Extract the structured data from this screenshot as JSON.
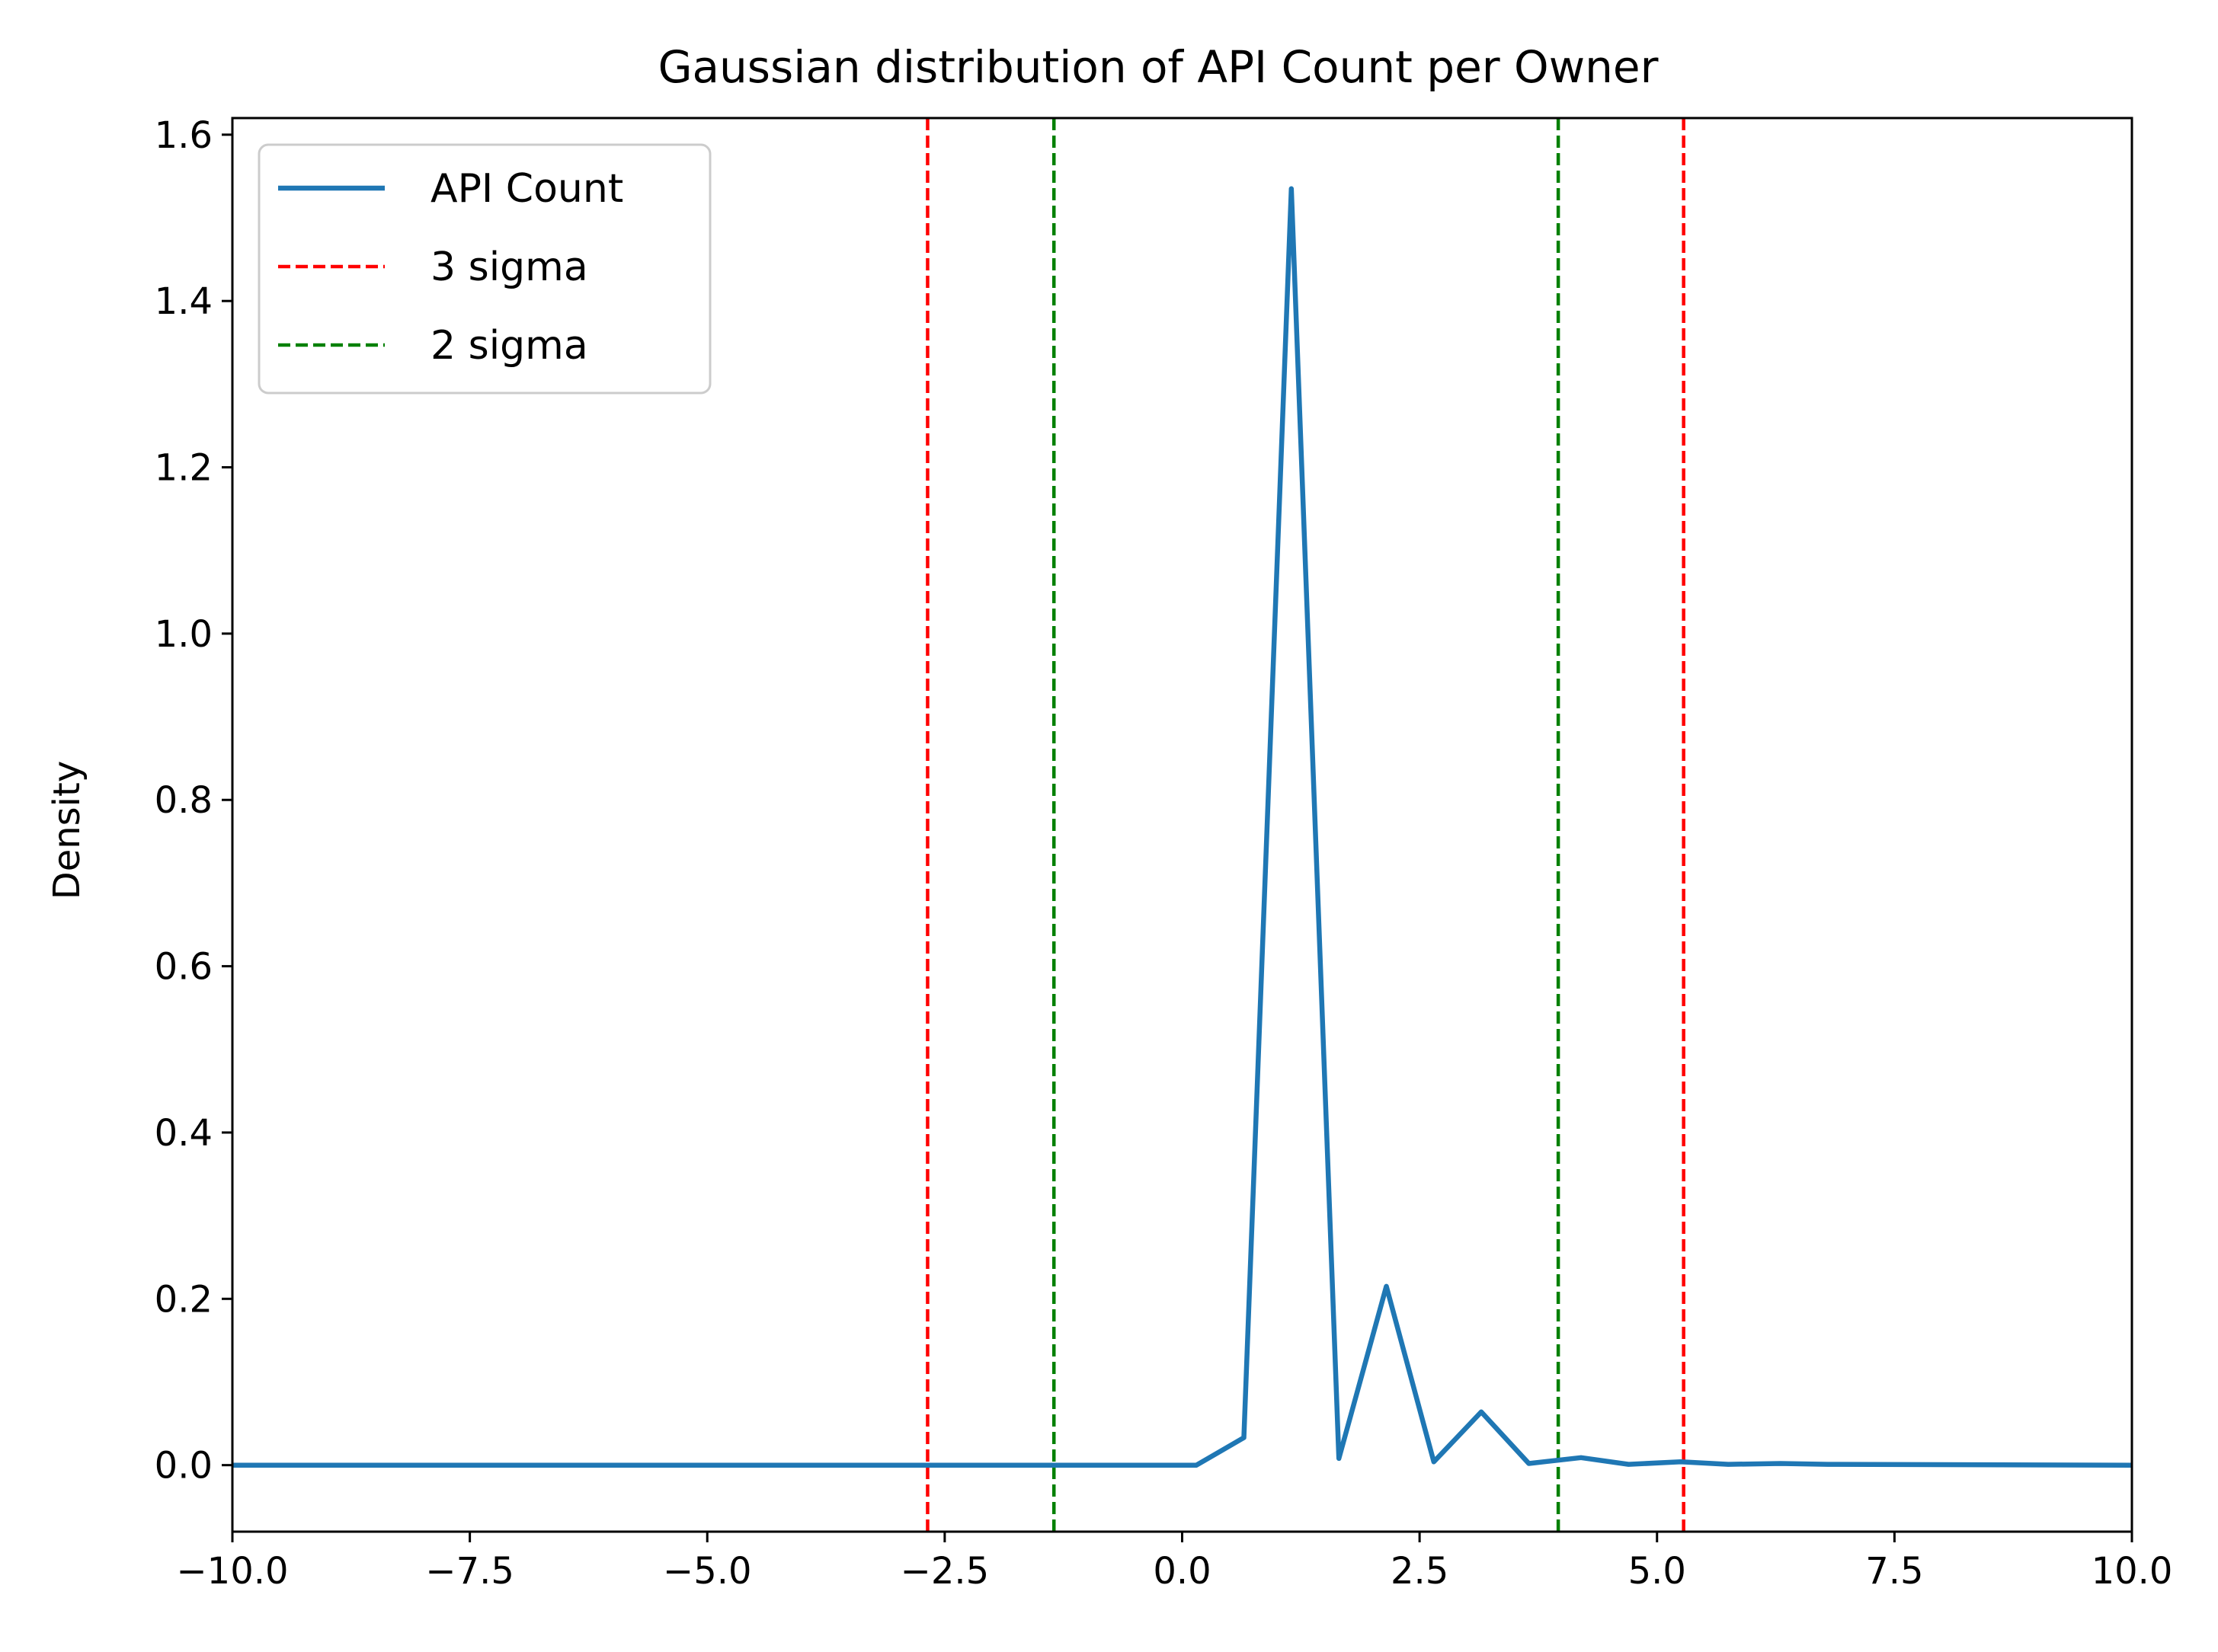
{
  "chart_data": {
    "type": "line",
    "title": "Gaussian distribution of API Count per Owner",
    "xlabel": "",
    "ylabel": "Density",
    "xlim": [
      -10.0,
      10.0
    ],
    "ylim": [
      -0.08,
      1.62
    ],
    "x_ticks": [
      -10.0,
      -7.5,
      -5.0,
      -2.5,
      0.0,
      2.5,
      5.0,
      7.5,
      10.0
    ],
    "x_tick_labels": [
      "−10.0",
      "−7.5",
      "−5.0",
      "−2.5",
      "0.0",
      "2.5",
      "5.0",
      "7.5",
      "10.0"
    ],
    "y_ticks": [
      0.0,
      0.2,
      0.4,
      0.6,
      0.8,
      1.0,
      1.2,
      1.4,
      1.6
    ],
    "y_tick_labels": [
      "0.0",
      "0.2",
      "0.4",
      "0.6",
      "0.8",
      "1.0",
      "1.2",
      "1.4",
      "1.6"
    ],
    "grid": false,
    "legend_position": "top-left",
    "series": [
      {
        "name": "API Count",
        "style": "solid",
        "color": "#1f77b4",
        "points": [
          [
            -10.0,
            0.0
          ],
          [
            0.15,
            0.0
          ],
          [
            0.65,
            0.033
          ],
          [
            1.15,
            1.535
          ],
          [
            1.65,
            0.008
          ],
          [
            2.15,
            0.215
          ],
          [
            2.65,
            0.004
          ],
          [
            3.15,
            0.064
          ],
          [
            3.65,
            0.002
          ],
          [
            4.2,
            0.009
          ],
          [
            4.7,
            0.001
          ],
          [
            5.25,
            0.004
          ],
          [
            5.75,
            0.001
          ],
          [
            6.3,
            0.002
          ],
          [
            6.8,
            0.001
          ],
          [
            10.0,
            0.0
          ]
        ]
      }
    ],
    "vlines": [
      {
        "name": "3 sigma",
        "color": "#ff0000",
        "style": "dashed",
        "x": [
          -2.68,
          5.28
        ]
      },
      {
        "name": "2 sigma",
        "color": "#008000",
        "style": "dashed",
        "x": [
          -1.35,
          3.96
        ]
      }
    ]
  }
}
